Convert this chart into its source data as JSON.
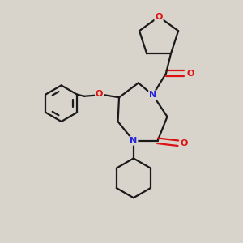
{
  "bg_color": "#d8d4cc",
  "bond_color": "#1a1a1a",
  "N_color": "#2222dd",
  "O_color": "#dd1111",
  "bond_width": 1.6,
  "figsize": [
    3.0,
    3.0
  ],
  "dpi": 100,
  "xlim": [
    0,
    10
  ],
  "ylim": [
    0,
    10
  ]
}
